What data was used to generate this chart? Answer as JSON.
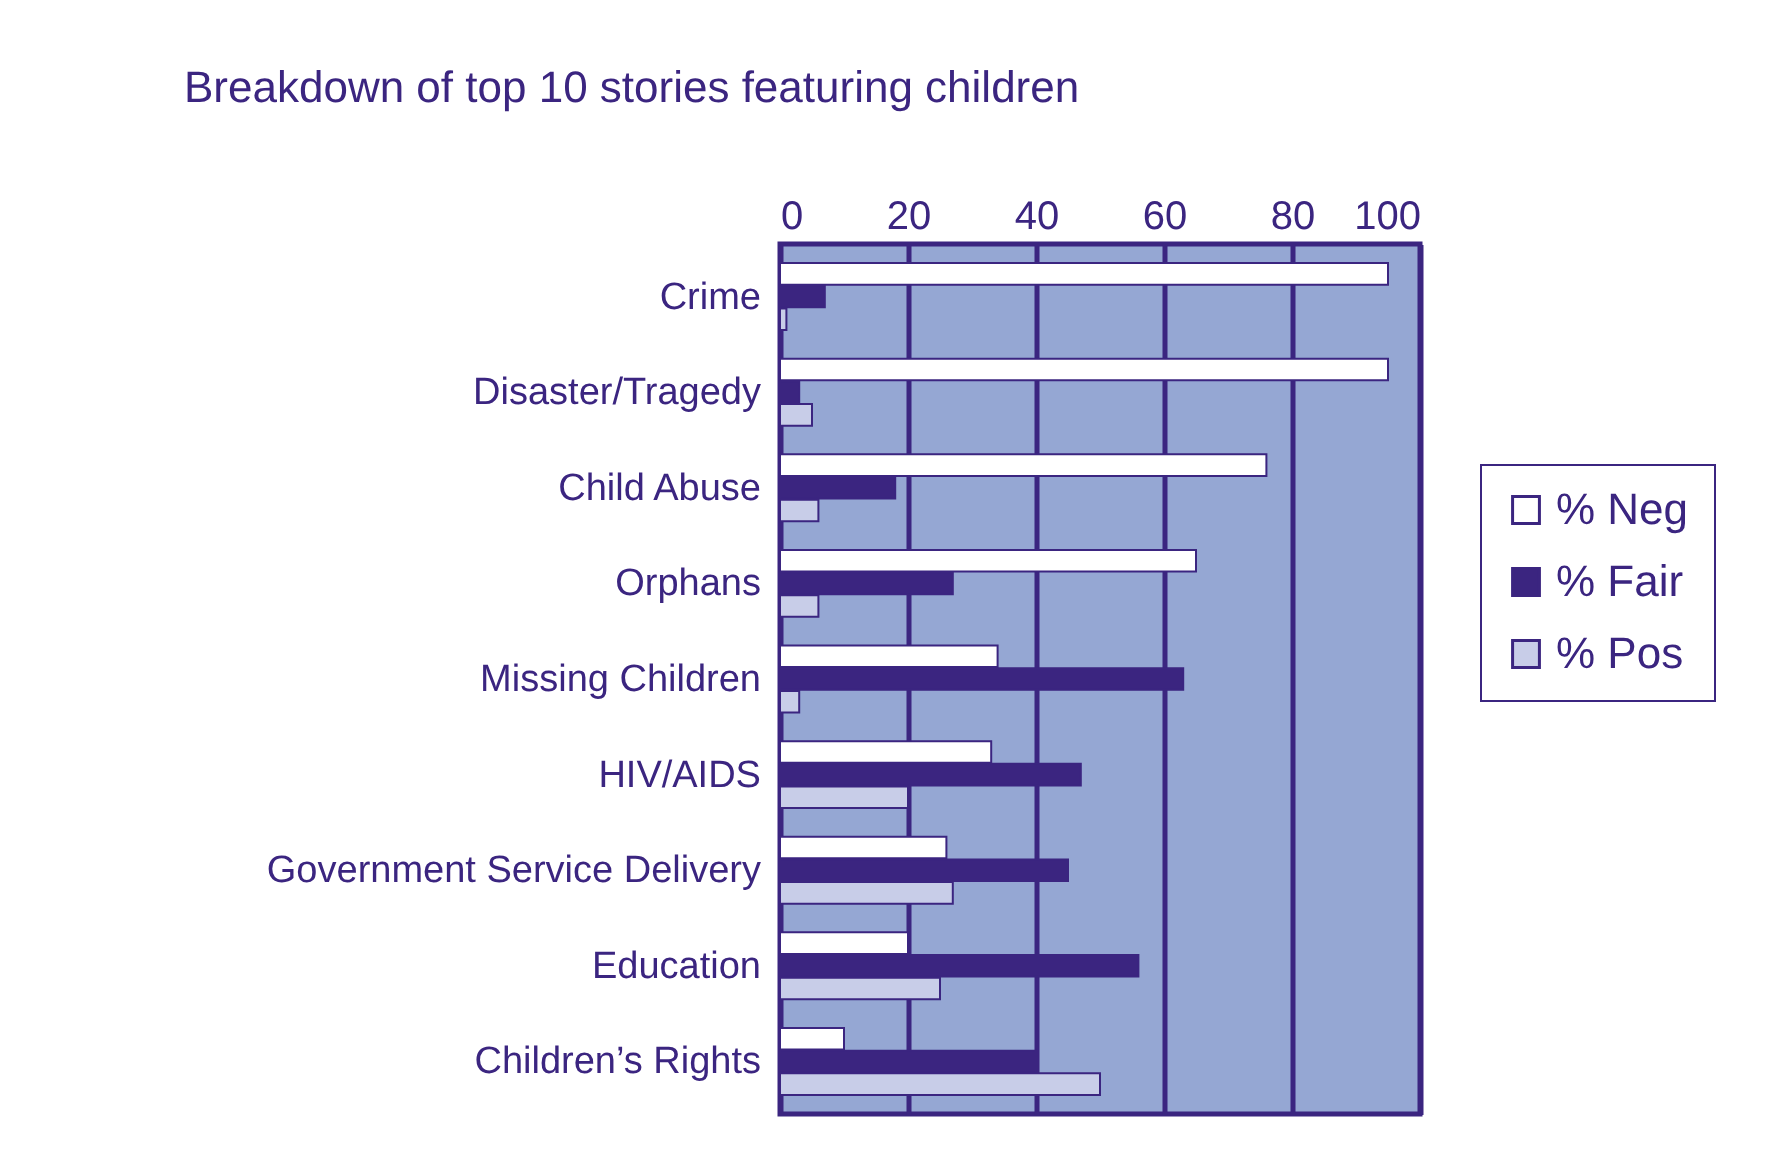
{
  "chart_data": {
    "type": "bar",
    "orientation": "horizontal",
    "title": "Breakdown of top 10 stories featuring children",
    "categories": [
      "Crime",
      "Disaster/Tragedy",
      "Child Abuse",
      "Orphans",
      "Missing Children",
      "HIV/AIDS",
      "Government Service Delivery",
      "Education",
      "Children’s Rights"
    ],
    "series": [
      {
        "name": "% Neg",
        "color": "#ffffff",
        "values": [
          95,
          95,
          76,
          65,
          34,
          33,
          26,
          20,
          10
        ]
      },
      {
        "name": "% Fair",
        "color": "#3b2580",
        "values": [
          7,
          3,
          18,
          27,
          63,
          47,
          45,
          56,
          40
        ]
      },
      {
        "name": "% Pos",
        "color": "#c8cde8",
        "values": [
          1,
          5,
          6,
          6,
          3,
          20,
          27,
          25,
          50
        ]
      }
    ],
    "xlim": [
      0,
      100
    ],
    "xticks": [
      0,
      20,
      40,
      60,
      80,
      100
    ],
    "grid": "x",
    "legend": "right"
  }
}
